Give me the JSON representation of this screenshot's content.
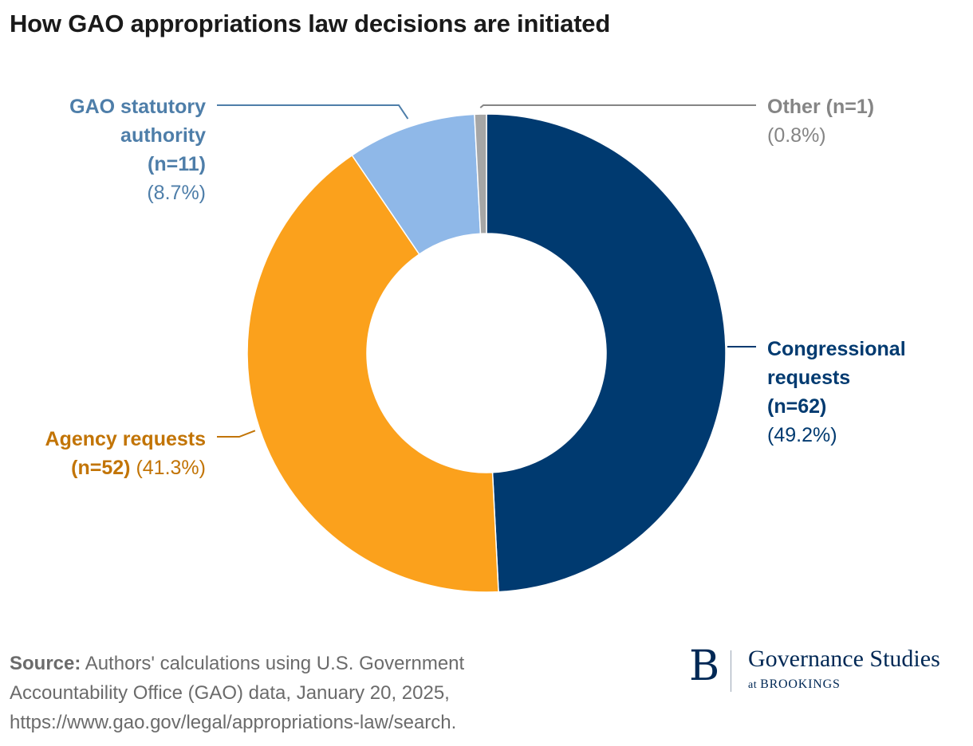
{
  "title": "How GAO appropriations law decisions are initiated",
  "chart_data": {
    "type": "pie",
    "donut": true,
    "title": "How GAO appropriations law decisions are initiated",
    "slices": [
      {
        "name": "Congressional requests",
        "n_label": "(n=62)",
        "count": 62,
        "value": 49.2,
        "pct_label": "(49.2%)",
        "color": "#003a70"
      },
      {
        "name": "Agency requests",
        "n_label": "(n=52)",
        "count": 52,
        "value": 41.3,
        "pct_label": "(41.3%)",
        "color": "#fba11c"
      },
      {
        "name": "GAO statutory authority",
        "n_label": "(n=11)",
        "count": 11,
        "value": 8.7,
        "pct_label": "(8.7%)",
        "color": "#8fb8e8"
      },
      {
        "name": "Other",
        "n_label": "(n=1)",
        "count": 1,
        "value": 0.8,
        "pct_label": "(0.8%)",
        "color": "#a6a6a6"
      }
    ],
    "label_colors": {
      "Congressional requests": "#003a70",
      "Agency requests": "#c27405",
      "GAO statutory authority": "#4e7ea9",
      "Other": "#858585"
    },
    "legend": "none"
  },
  "source": {
    "label": "Source:",
    "text": "Authors' calculations using U.S. Government Accountability Office (GAO) data, January 20, 2025, https://www.gao.gov/legal/appropriations-law/search."
  },
  "logo": {
    "mark": "B",
    "name": "Governance Studies",
    "sub_at": "at",
    "sub_org": "BROOKINGS"
  }
}
